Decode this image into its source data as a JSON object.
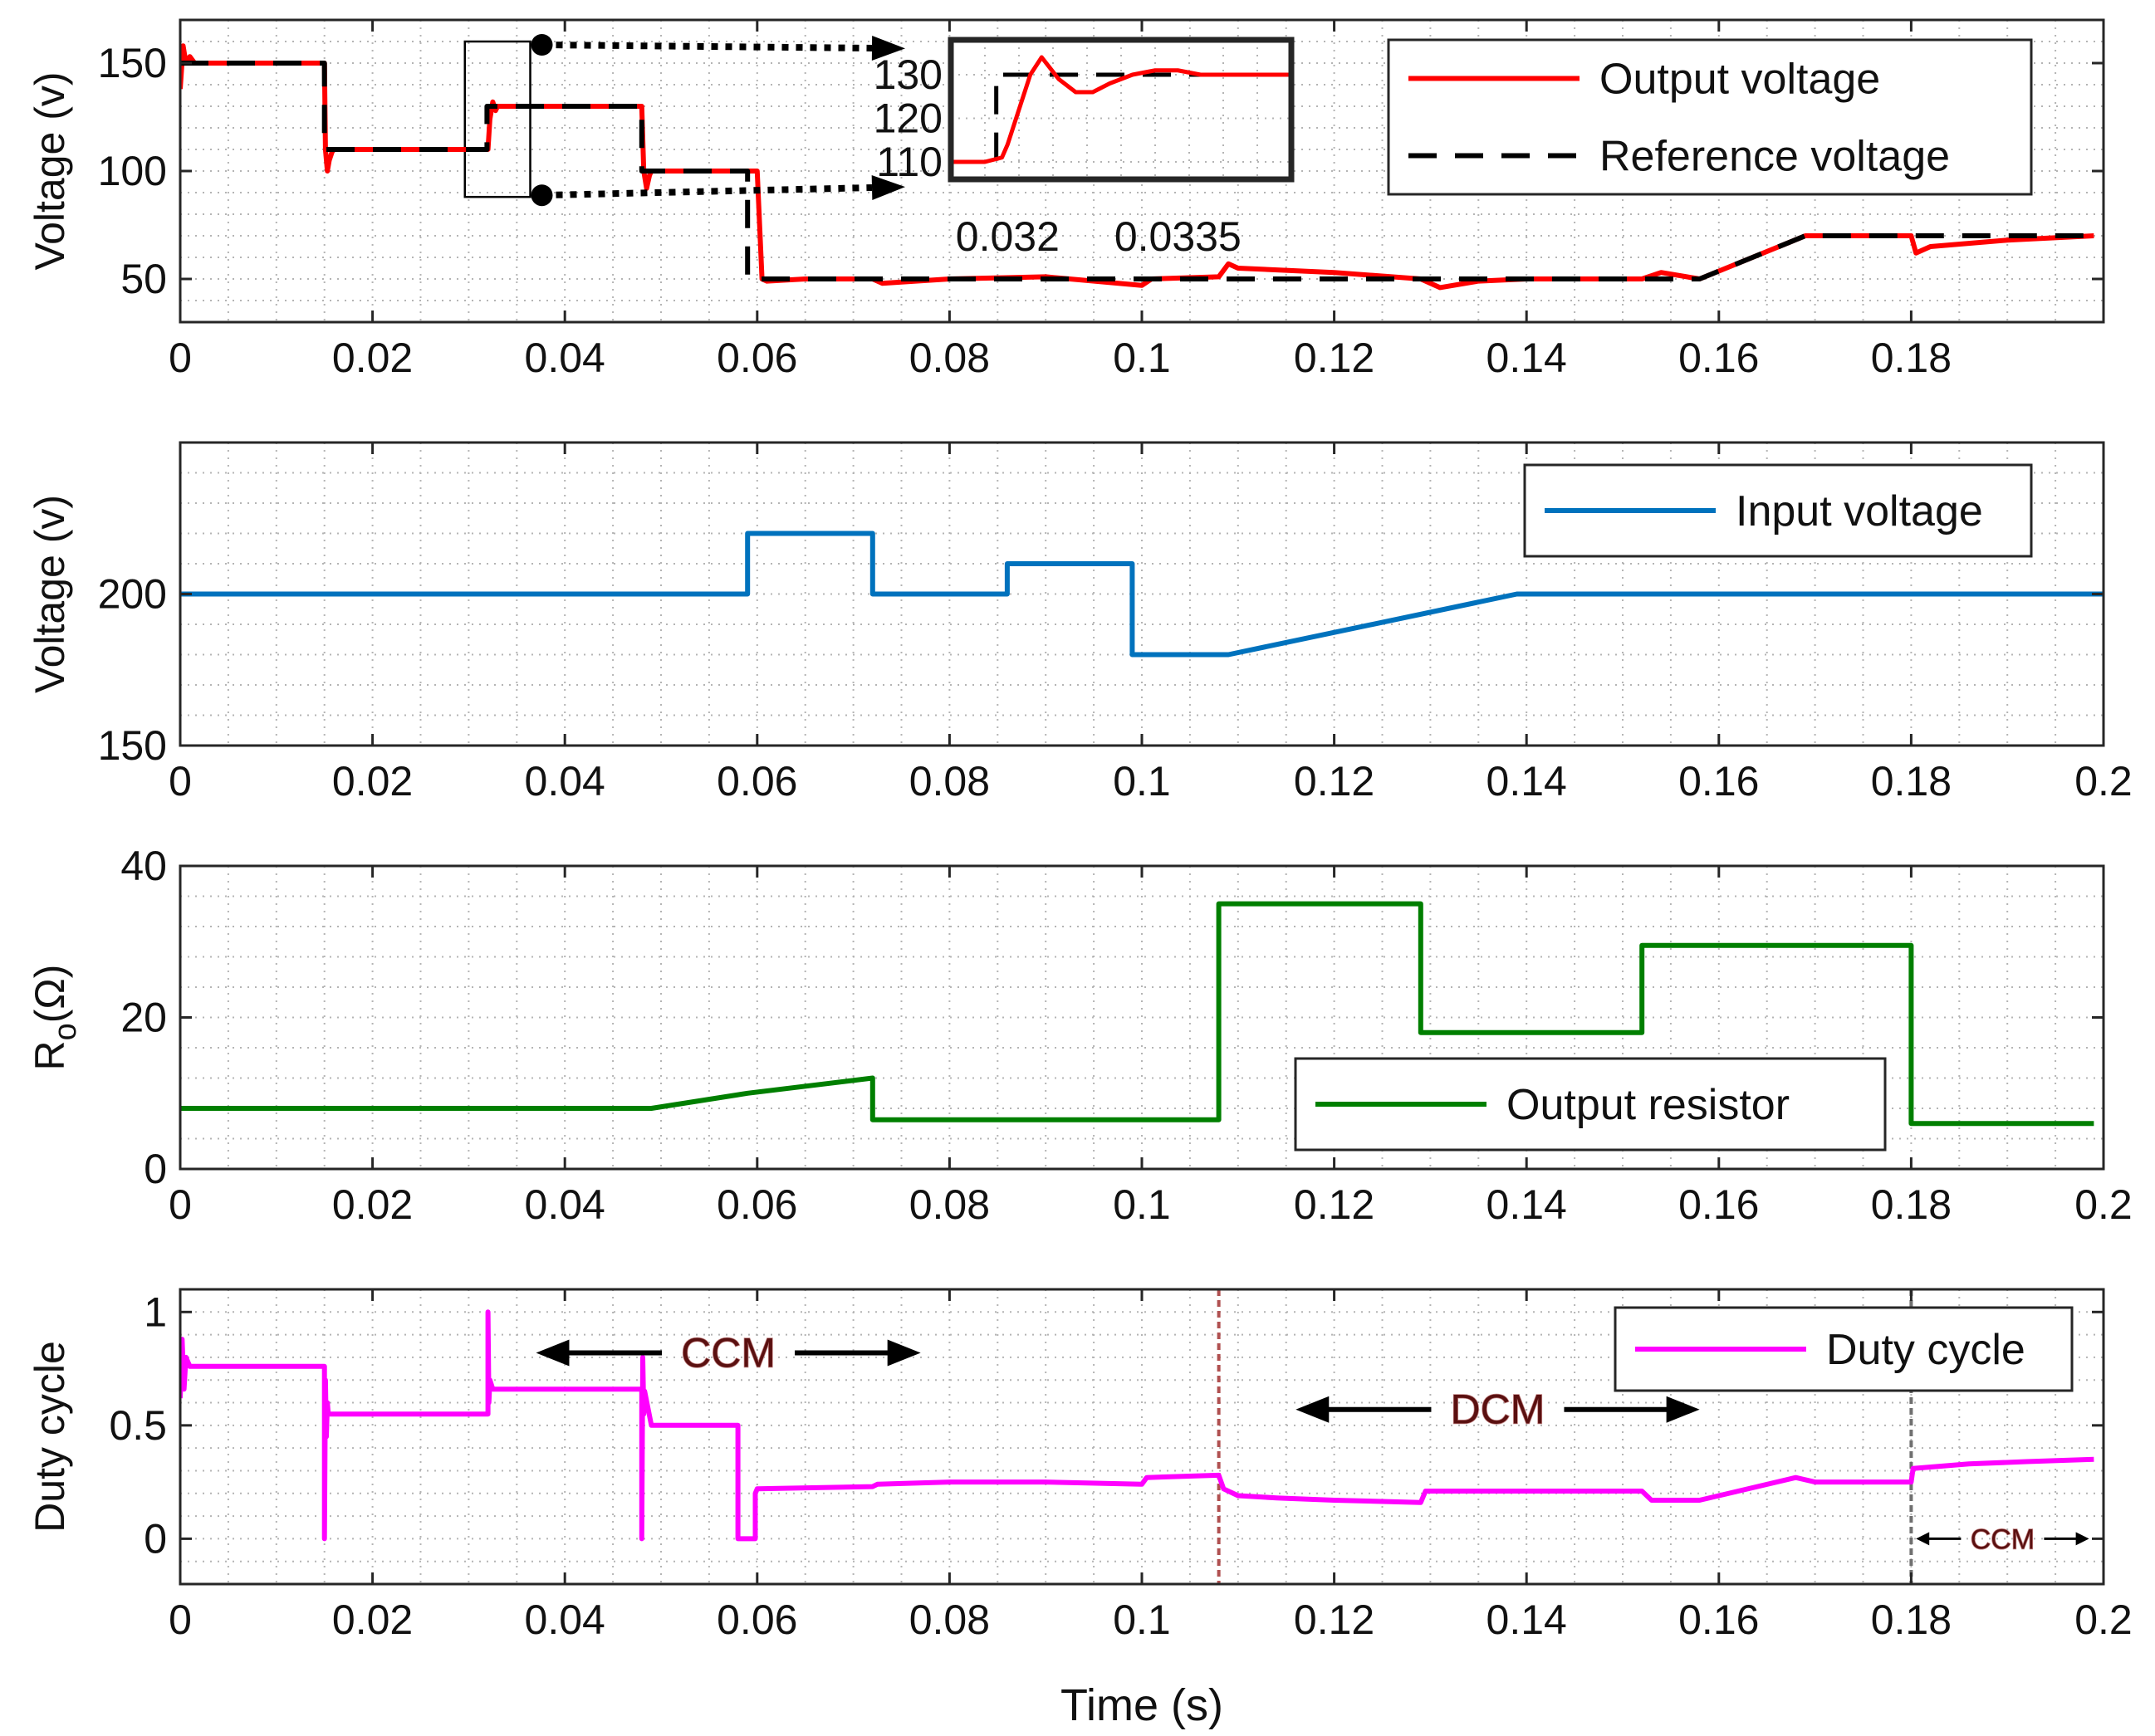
{
  "figure": {
    "xlabel": "Time (s)"
  },
  "chart_data": [
    {
      "type": "line",
      "id": "p1",
      "ylabel": "Voltage (v)",
      "xlim": [
        0,
        0.2
      ],
      "ylim": [
        30,
        170
      ],
      "xticks": [
        0,
        0.02,
        0.04,
        0.06,
        0.08,
        0.1,
        0.12,
        0.14,
        0.16,
        0.18
      ],
      "xtick_labels": [
        "0",
        "0.02",
        "0.04",
        "0.06",
        "0.08",
        "0.1",
        "0.12",
        "0.14",
        "0.16",
        "0.18"
      ],
      "yticks": [
        50,
        100,
        150
      ],
      "ytick_labels": [
        "50",
        "100",
        "150"
      ],
      "grid": true,
      "legend_position": "top-right",
      "series": [
        {
          "name": "Output voltage",
          "color": "#ff0000",
          "style": "solid",
          "x": [
            0,
            0.0003,
            0.0006,
            0.001,
            0.0015,
            0.003,
            0.015,
            0.0151,
            0.0153,
            0.0155,
            0.0158,
            0.016,
            0.017,
            0.02,
            0.032,
            0.0322,
            0.0325,
            0.0328,
            0.033,
            0.0333,
            0.034,
            0.036,
            0.048,
            0.0482,
            0.0485,
            0.0488,
            0.049,
            0.05,
            0.06,
            0.0605,
            0.061,
            0.065,
            0.072,
            0.073,
            0.08,
            0.09,
            0.1,
            0.101,
            0.108,
            0.109,
            0.11,
            0.12,
            0.129,
            0.131,
            0.135,
            0.14,
            0.152,
            0.154,
            0.158,
            0.169,
            0.18,
            0.1805,
            0.182,
            0.19,
            0.199
          ],
          "y": [
            138,
            158,
            150,
            153,
            150,
            150,
            150,
            110,
            100,
            105,
            109,
            110,
            110,
            110,
            110,
            124,
            132,
            128,
            130,
            130,
            130,
            130,
            130,
            100,
            92,
            98,
            100,
            100,
            100,
            50,
            49,
            50,
            50,
            48,
            50,
            51,
            47,
            50,
            51,
            57,
            55,
            53,
            50,
            46,
            49,
            50,
            50,
            53,
            50,
            70,
            70,
            62,
            65,
            68,
            70
          ]
        },
        {
          "name": "Reference voltage",
          "color": "#000000",
          "style": "dashed",
          "x": [
            0,
            0.015,
            0.015,
            0.0319,
            0.0319,
            0.048,
            0.048,
            0.059,
            0.059,
            0.158,
            0.169,
            0.199
          ],
          "y": [
            150,
            150,
            110,
            110,
            130,
            130,
            100,
            100,
            50,
            50,
            70,
            70
          ]
        }
      ],
      "inset": {
        "xticks": [
          0.032,
          0.0335
        ],
        "xtick_labels": [
          "0.032",
          "0.0335"
        ],
        "yticks": [
          110,
          120,
          130
        ],
        "ytick_labels": [
          "110",
          "120",
          "130"
        ],
        "xlim": [
          0.0315,
          0.0345
        ],
        "ylim": [
          106,
          138
        ],
        "output_x": [
          0.0315,
          0.0318,
          0.03195,
          0.032,
          0.0321,
          0.0322,
          0.0323,
          0.03245,
          0.0326,
          0.03275,
          0.0329,
          0.0331,
          0.0333,
          0.0335,
          0.0337,
          0.034,
          0.0345
        ],
        "output_y": [
          110,
          110,
          111,
          114,
          122,
          130,
          134,
          129,
          126,
          126,
          128,
          130,
          131,
          131,
          130,
          130,
          130
        ],
        "ref_x": [
          0.0315,
          0.0319,
          0.0319,
          0.0345
        ],
        "ref_y": [
          110,
          110,
          130,
          130
        ],
        "zoom_box": {
          "x0": 0.0296,
          "x1": 0.0364,
          "y0": 88,
          "y1": 160
        }
      }
    },
    {
      "type": "line",
      "id": "p2",
      "ylabel": "Voltage (v)",
      "xlim": [
        0,
        0.2
      ],
      "ylim": [
        150,
        250
      ],
      "xticks": [
        0,
        0.02,
        0.04,
        0.06,
        0.08,
        0.1,
        0.12,
        0.14,
        0.16,
        0.18,
        0.2
      ],
      "xtick_labels": [
        "0",
        "0.02",
        "0.04",
        "0.06",
        "0.08",
        "0.1",
        "0.12",
        "0.14",
        "0.16",
        "0.18",
        "0.2"
      ],
      "yticks": [
        150,
        200
      ],
      "ytick_labels": [
        "150",
        "200"
      ],
      "grid": true,
      "legend_position": "top-right",
      "series": [
        {
          "name": "Input voltage",
          "color": "#0072bd",
          "style": "solid",
          "x": [
            0,
            0.059,
            0.059,
            0.072,
            0.072,
            0.086,
            0.086,
            0.099,
            0.099,
            0.109,
            0.139,
            0.2
          ],
          "y": [
            200,
            200,
            220,
            220,
            200,
            200,
            210,
            210,
            180,
            180,
            200,
            200
          ]
        }
      ]
    },
    {
      "type": "line",
      "id": "p3",
      "ylabel": "R",
      "ylabel_sub": "o",
      "ylabel_unit": "(Ω)",
      "xlim": [
        0,
        0.2
      ],
      "ylim": [
        0,
        40
      ],
      "xticks": [
        0,
        0.02,
        0.04,
        0.06,
        0.08,
        0.1,
        0.12,
        0.14,
        0.16,
        0.18,
        0.2
      ],
      "xtick_labels": [
        "0",
        "0.02",
        "0.04",
        "0.06",
        "0.08",
        "0.1",
        "0.12",
        "0.14",
        "0.16",
        "0.18",
        "0.2"
      ],
      "yticks": [
        0,
        20,
        40
      ],
      "ytick_labels": [
        "0",
        "20",
        "40"
      ],
      "grid": true,
      "legend_position": "center-right",
      "series": [
        {
          "name": "Output resistor",
          "color": "#007f00",
          "style": "solid",
          "x": [
            0,
            0.049,
            0.059,
            0.072,
            0.072,
            0.108,
            0.108,
            0.129,
            0.129,
            0.152,
            0.152,
            0.18,
            0.18,
            0.199
          ],
          "y": [
            8,
            8,
            10,
            12,
            6.5,
            6.5,
            35,
            35,
            18,
            18,
            29.5,
            29.5,
            6,
            6
          ]
        }
      ]
    },
    {
      "type": "line",
      "id": "p4",
      "ylabel": "Duty cycle",
      "xlim": [
        0,
        0.2
      ],
      "ylim": [
        -0.2,
        1.1
      ],
      "xticks": [
        0,
        0.02,
        0.04,
        0.06,
        0.08,
        0.1,
        0.12,
        0.14,
        0.16,
        0.18,
        0.2
      ],
      "xtick_labels": [
        "0",
        "0.02",
        "0.04",
        "0.06",
        "0.08",
        "0.1",
        "0.12",
        "0.14",
        "0.16",
        "0.18",
        "0.2"
      ],
      "yticks": [
        0,
        0.5,
        1
      ],
      "ytick_labels": [
        "0",
        "0.5",
        "1"
      ],
      "grid": true,
      "legend_position": "top-right",
      "series": [
        {
          "name": "Duty cycle",
          "color": "#ff00ff",
          "style": "solid",
          "x": [
            0,
            0.0002,
            0.0004,
            0.0006,
            0.001,
            0.003,
            0.015,
            0.015,
            0.0151,
            0.0152,
            0.0153,
            0.0154,
            0.016,
            0.032,
            0.032,
            0.0321,
            0.0322,
            0.0325,
            0.048,
            0.048,
            0.0481,
            0.0482,
            0.0483,
            0.049,
            0.058,
            0.058,
            0.0598,
            0.0598,
            0.06,
            0.072,
            0.0725,
            0.08,
            0.09,
            0.1,
            0.1005,
            0.108,
            0.1085,
            0.11,
            0.114,
            0.12,
            0.129,
            0.1295,
            0.135,
            0.152,
            0.153,
            0.158,
            0.168,
            0.17,
            0.18,
            0.1802,
            0.186,
            0.192,
            0.199
          ],
          "y": [
            0.62,
            0.88,
            0.66,
            0.8,
            0.76,
            0.76,
            0.76,
            0.0,
            0.7,
            0.45,
            0.6,
            0.55,
            0.55,
            0.55,
            1.0,
            0.6,
            0.7,
            0.66,
            0.66,
            0.0,
            0.8,
            0.55,
            0.65,
            0.5,
            0.5,
            0.0,
            0.0,
            0.2,
            0.22,
            0.23,
            0.24,
            0.25,
            0.25,
            0.24,
            0.27,
            0.28,
            0.22,
            0.19,
            0.18,
            0.17,
            0.16,
            0.21,
            0.21,
            0.21,
            0.17,
            0.17,
            0.27,
            0.25,
            0.25,
            0.31,
            0.33,
            0.34,
            0.35
          ]
        }
      ],
      "annotations": [
        {
          "text": "CCM",
          "x0": 0.037,
          "x1": 0.077,
          "y": 0.82,
          "size": "large"
        },
        {
          "text": "DCM",
          "x0": 0.116,
          "x1": 0.158,
          "y": 0.57,
          "size": "large"
        },
        {
          "text": "CCM",
          "x0": 0.1805,
          "x1": 0.1985,
          "y": 0.0,
          "size": "small"
        }
      ],
      "vlines": [
        {
          "x": 0.108,
          "color": "#b05050"
        },
        {
          "x": 0.18,
          "color": "#707070"
        }
      ]
    }
  ]
}
